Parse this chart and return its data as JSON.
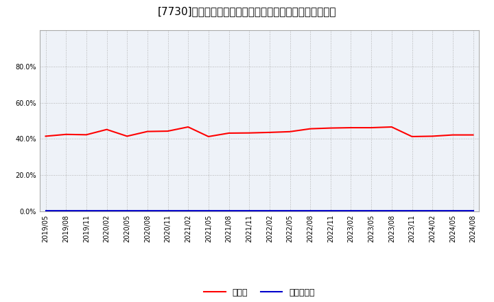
{
  "title": "[7730]　現顓金、有利子負債の総資産に対する比率の推移",
  "x_labels": [
    "2019/05",
    "2019/08",
    "2019/11",
    "2020/02",
    "2020/05",
    "2020/08",
    "2020/11",
    "2021/02",
    "2021/05",
    "2021/08",
    "2021/11",
    "2022/02",
    "2022/05",
    "2022/08",
    "2022/11",
    "2023/02",
    "2023/05",
    "2023/08",
    "2023/11",
    "2024/02",
    "2024/05",
    "2024/08"
  ],
  "cash_values": [
    0.415,
    0.425,
    0.423,
    0.452,
    0.415,
    0.441,
    0.443,
    0.466,
    0.413,
    0.432,
    0.433,
    0.436,
    0.44,
    0.456,
    0.46,
    0.462,
    0.462,
    0.466,
    0.413,
    0.415,
    0.422,
    0.422
  ],
  "debt_values": [
    0.005,
    0.005,
    0.005,
    0.005,
    0.005,
    0.005,
    0.005,
    0.005,
    0.005,
    0.005,
    0.005,
    0.005,
    0.005,
    0.005,
    0.005,
    0.005,
    0.005,
    0.005,
    0.005,
    0.005,
    0.005,
    0.005
  ],
  "cash_color": "#ff0000",
  "debt_color": "#0000cc",
  "cash_label": "現顓金",
  "debt_label": "有利子負債",
  "y_ticks": [
    0.0,
    0.2,
    0.4,
    0.6,
    0.8
  ],
  "y_max": 1.0,
  "y_min": 0.0,
  "bg_color": "#ffffff",
  "plot_bg_color": "#eef2f8",
  "grid_color": "#aaaaaa",
  "title_fontsize": 11,
  "tick_fontsize": 7,
  "legend_fontsize": 9
}
